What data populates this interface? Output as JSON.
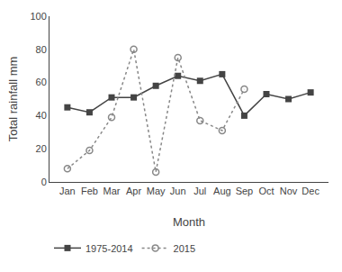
{
  "chart_data": {
    "type": "line",
    "xlabel": "Month",
    "ylabel": "Total rainfall mm",
    "categories": [
      "Jan",
      "Feb",
      "Mar",
      "Apr",
      "May",
      "Jun",
      "Jul",
      "Aug",
      "Sep",
      "Oct",
      "Nov",
      "Dec"
    ],
    "series": [
      {
        "name": "1975-2014",
        "color": "#444444",
        "values": [
          45,
          42,
          51,
          51,
          58,
          64,
          61,
          65,
          40,
          53,
          50,
          54
        ],
        "marker": "square",
        "line_style": "solid"
      },
      {
        "name": "2015",
        "color": "#888888",
        "values": [
          8,
          19,
          39,
          80,
          6,
          75,
          37,
          31,
          56,
          null,
          null,
          null
        ],
        "marker": "circle-open",
        "line_style": "dotted"
      }
    ],
    "ylim": [
      0,
      100
    ],
    "yticks": [
      0,
      20,
      40,
      60,
      80,
      100
    ],
    "grid": false,
    "legend": "lower left"
  }
}
